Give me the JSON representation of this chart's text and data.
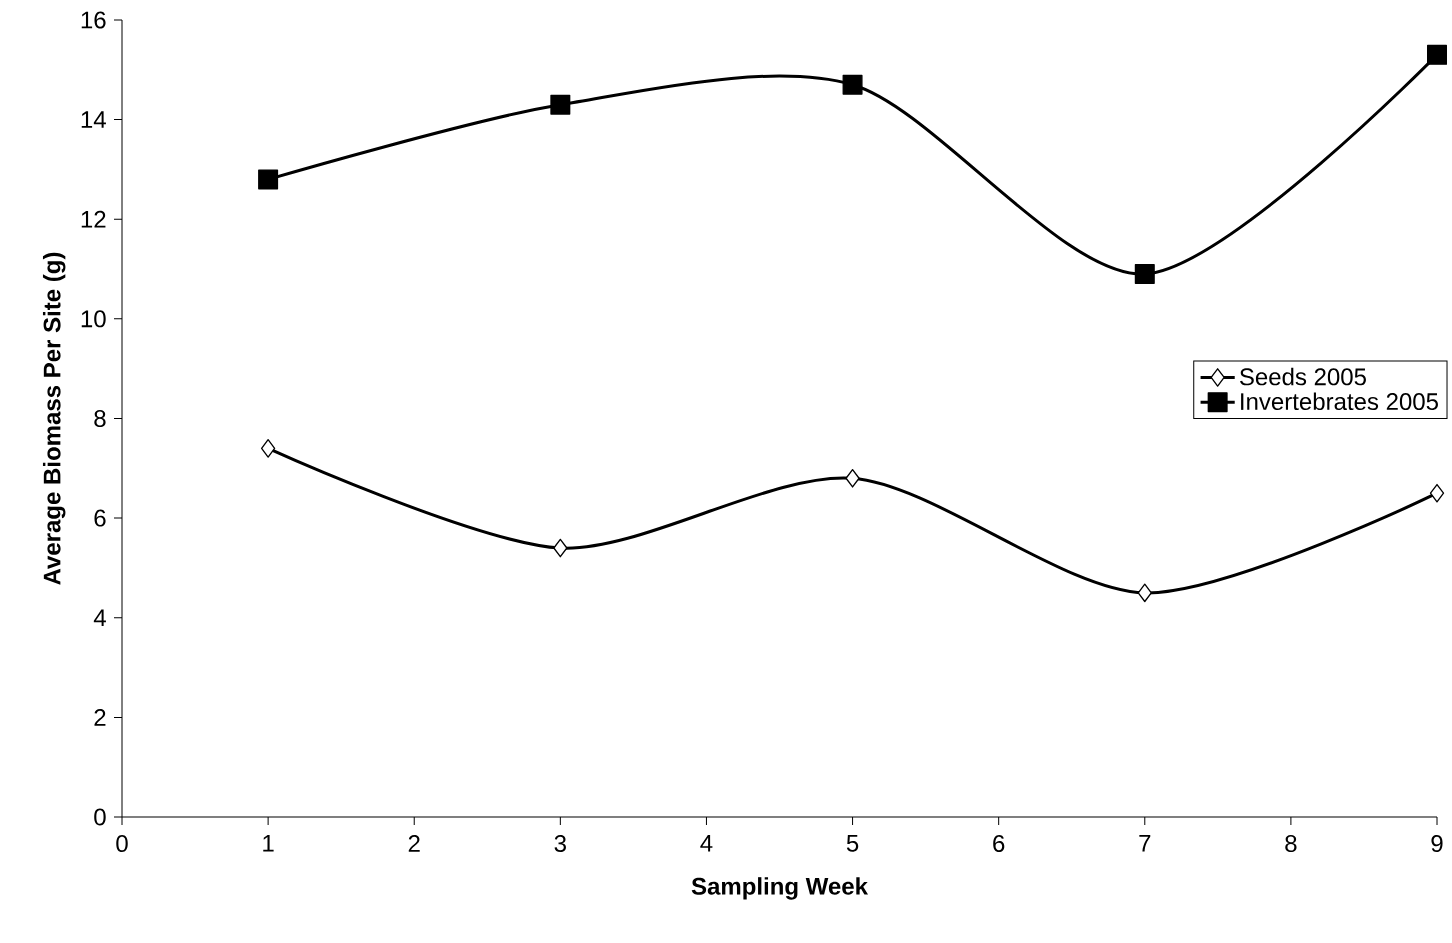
{
  "chart_data": {
    "type": "line",
    "xlabel": "Sampling Week",
    "ylabel": "Average Biomass Per Site (g)",
    "x": [
      1,
      3,
      5,
      7,
      9
    ],
    "series": [
      {
        "name": "Seeds 2005",
        "color": "#000000",
        "marker": "diamond",
        "values": [
          7.4,
          5.4,
          6.8,
          4.5,
          6.5
        ]
      },
      {
        "name": "Invertebrates 2005",
        "color": "#000000",
        "marker": "square",
        "values": [
          12.8,
          14.3,
          14.7,
          10.9,
          15.3
        ]
      }
    ],
    "xlim": [
      0,
      9
    ],
    "xticks": [
      0,
      1,
      2,
      3,
      4,
      5,
      6,
      7,
      8,
      9
    ],
    "ylim": [
      0,
      16
    ],
    "yticks": [
      0,
      2,
      4,
      6,
      8,
      10,
      12,
      14,
      16
    ],
    "line_style": "solid",
    "legend": "right"
  }
}
